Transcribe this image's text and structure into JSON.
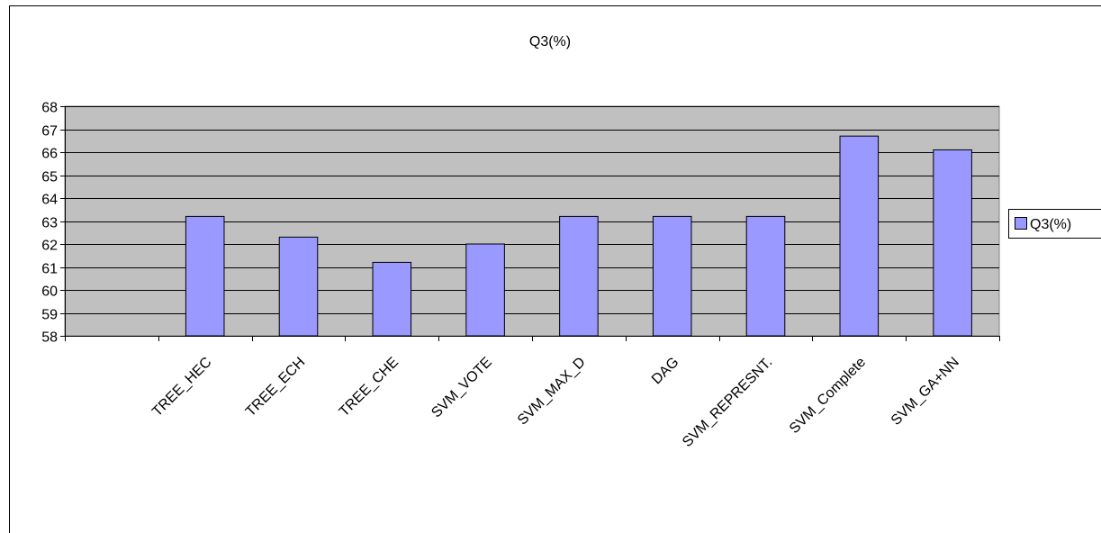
{
  "chart_data": {
    "type": "bar",
    "title": "Q3(%)",
    "categories": [
      "",
      "TREE_HEC",
      "TREE_ECH",
      "TREE_CHE",
      "SVM_VOTE",
      "SVM_MAX_D",
      "DAG",
      "SVM_REPRESNT.",
      "SVM_Complete",
      "SVM_GA+NN"
    ],
    "series": [
      {
        "name": "Q3(%)",
        "values": [
          null,
          63.2,
          62.3,
          61.2,
          62.0,
          63.2,
          63.2,
          63.2,
          66.7,
          66.1
        ]
      }
    ],
    "ylim": [
      58,
      68
    ],
    "yticks": [
      58,
      59,
      60,
      61,
      62,
      63,
      64,
      65,
      66,
      67,
      68
    ],
    "grid": true,
    "legend": "right",
    "colors": {
      "bar_fill": "#9999ff",
      "plot_bg": "#c0c0c0",
      "border": "#000000"
    }
  }
}
